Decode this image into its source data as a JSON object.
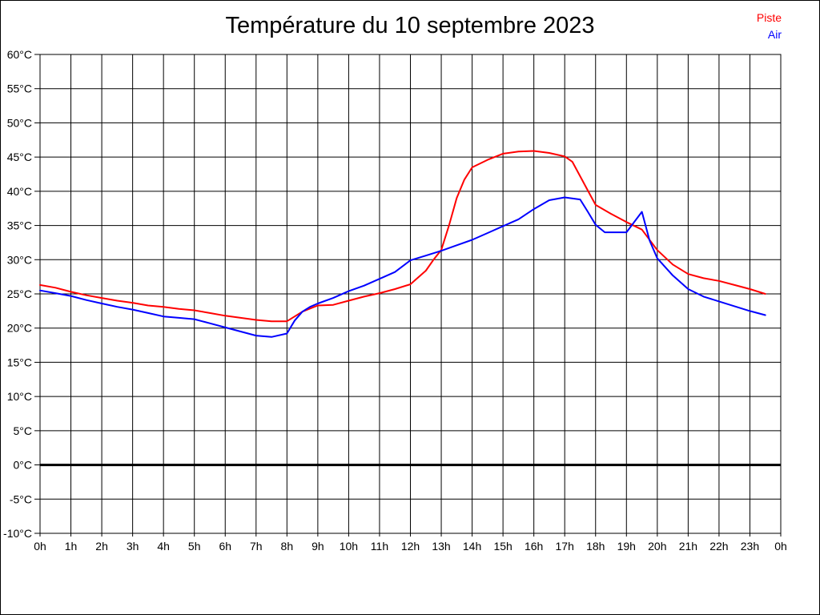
{
  "page": {
    "background": "#ffffff",
    "border_color": "#000000",
    "grid_color": "#000000",
    "text_color": "#000000"
  },
  "chart_data": {
    "type": "line",
    "title": "Température du 10 septembre 2023",
    "xlabel": "",
    "ylabel": "",
    "xlim": [
      0,
      24
    ],
    "ylim": [
      -10,
      60
    ],
    "grid": true,
    "zero_line_value": 0,
    "legend": {
      "position": "top-right",
      "entries": [
        {
          "label": "Piste",
          "color": "#ff0000"
        },
        {
          "label": "Air",
          "color": "#0000ff"
        }
      ]
    },
    "x_ticks": [
      {
        "value": 0,
        "label": "0h"
      },
      {
        "value": 1,
        "label": "1h"
      },
      {
        "value": 2,
        "label": "2h"
      },
      {
        "value": 3,
        "label": "3h"
      },
      {
        "value": 4,
        "label": "4h"
      },
      {
        "value": 5,
        "label": "5h"
      },
      {
        "value": 6,
        "label": "6h"
      },
      {
        "value": 7,
        "label": "7h"
      },
      {
        "value": 8,
        "label": "8h"
      },
      {
        "value": 9,
        "label": "9h"
      },
      {
        "value": 10,
        "label": "10h"
      },
      {
        "value": 11,
        "label": "11h"
      },
      {
        "value": 12,
        "label": "12h"
      },
      {
        "value": 13,
        "label": "13h"
      },
      {
        "value": 14,
        "label": "14h"
      },
      {
        "value": 15,
        "label": "15h"
      },
      {
        "value": 16,
        "label": "16h"
      },
      {
        "value": 17,
        "label": "17h"
      },
      {
        "value": 18,
        "label": "18h"
      },
      {
        "value": 19,
        "label": "19h"
      },
      {
        "value": 20,
        "label": "20h"
      },
      {
        "value": 21,
        "label": "21h"
      },
      {
        "value": 22,
        "label": "22h"
      },
      {
        "value": 23,
        "label": "23h"
      },
      {
        "value": 24,
        "label": "0h"
      }
    ],
    "y_ticks": [
      {
        "value": 60,
        "label": "60°C"
      },
      {
        "value": 55,
        "label": "55°C"
      },
      {
        "value": 50,
        "label": "50°C"
      },
      {
        "value": 45,
        "label": "45°C"
      },
      {
        "value": 40,
        "label": "40°C"
      },
      {
        "value": 35,
        "label": "35°C"
      },
      {
        "value": 30,
        "label": "30°C"
      },
      {
        "value": 25,
        "label": "25°C"
      },
      {
        "value": 20,
        "label": "20°C"
      },
      {
        "value": 15,
        "label": "15°C"
      },
      {
        "value": 10,
        "label": "10°C"
      },
      {
        "value": 5,
        "label": "5°C"
      },
      {
        "value": 0,
        "label": "0°C"
      },
      {
        "value": -5,
        "label": "-5°C"
      },
      {
        "value": -10,
        "label": "-10°C"
      }
    ],
    "series": [
      {
        "name": "Piste",
        "color": "#ff0000",
        "points": [
          [
            0,
            26.3
          ],
          [
            0.5,
            25.9
          ],
          [
            1,
            25.3
          ],
          [
            1.5,
            24.8
          ],
          [
            2,
            24.4
          ],
          [
            2.5,
            24.0
          ],
          [
            3,
            23.7
          ],
          [
            3.5,
            23.3
          ],
          [
            4,
            23.1
          ],
          [
            4.5,
            22.8
          ],
          [
            5,
            22.6
          ],
          [
            5.5,
            22.2
          ],
          [
            6,
            21.8
          ],
          [
            6.5,
            21.5
          ],
          [
            7,
            21.2
          ],
          [
            7.5,
            21.0
          ],
          [
            8,
            21.0
          ],
          [
            8.5,
            22.4
          ],
          [
            9,
            23.3
          ],
          [
            9.5,
            23.4
          ],
          [
            10,
            24.0
          ],
          [
            10.5,
            24.6
          ],
          [
            11,
            25.1
          ],
          [
            11.5,
            25.7
          ],
          [
            12,
            26.4
          ],
          [
            12.5,
            28.4
          ],
          [
            12.75,
            30.0
          ],
          [
            13,
            31.4
          ],
          [
            13.25,
            35.0
          ],
          [
            13.5,
            39.0
          ],
          [
            13.75,
            41.7
          ],
          [
            14,
            43.5
          ],
          [
            14.5,
            44.6
          ],
          [
            15,
            45.5
          ],
          [
            15.5,
            45.8
          ],
          [
            16,
            45.9
          ],
          [
            16.5,
            45.6
          ],
          [
            17,
            45.1
          ],
          [
            17.25,
            44.3
          ],
          [
            17.5,
            42.2
          ],
          [
            17.75,
            40.1
          ],
          [
            18,
            38.0
          ],
          [
            18.5,
            36.7
          ],
          [
            19,
            35.5
          ],
          [
            19.5,
            34.4
          ],
          [
            20,
            31.4
          ],
          [
            20.5,
            29.3
          ],
          [
            21,
            27.9
          ],
          [
            21.5,
            27.3
          ],
          [
            22,
            26.9
          ],
          [
            22.5,
            26.3
          ],
          [
            23,
            25.7
          ],
          [
            23.5,
            25.0
          ]
        ]
      },
      {
        "name": "Air",
        "color": "#0000ff",
        "points": [
          [
            0,
            25.5
          ],
          [
            0.5,
            25.1
          ],
          [
            1,
            24.7
          ],
          [
            1.5,
            24.1
          ],
          [
            2,
            23.6
          ],
          [
            2.5,
            23.1
          ],
          [
            3,
            22.7
          ],
          [
            3.5,
            22.2
          ],
          [
            4,
            21.7
          ],
          [
            4.5,
            21.5
          ],
          [
            5,
            21.3
          ],
          [
            5.5,
            20.7
          ],
          [
            6,
            20.1
          ],
          [
            6.5,
            19.5
          ],
          [
            7,
            18.9
          ],
          [
            7.5,
            18.7
          ],
          [
            8,
            19.2
          ],
          [
            8.25,
            21.1
          ],
          [
            8.5,
            22.4
          ],
          [
            8.75,
            23.1
          ],
          [
            9,
            23.6
          ],
          [
            9.5,
            24.4
          ],
          [
            10,
            25.4
          ],
          [
            10.5,
            26.2
          ],
          [
            11,
            27.2
          ],
          [
            11.5,
            28.2
          ],
          [
            12,
            29.9
          ],
          [
            12.5,
            30.6
          ],
          [
            13,
            31.3
          ],
          [
            13.5,
            32.1
          ],
          [
            14,
            32.9
          ],
          [
            14.5,
            33.9
          ],
          [
            15,
            34.9
          ],
          [
            15.5,
            35.9
          ],
          [
            16,
            37.4
          ],
          [
            16.5,
            38.7
          ],
          [
            17,
            39.1
          ],
          [
            17.5,
            38.8
          ],
          [
            17.75,
            37.0
          ],
          [
            18,
            35.1
          ],
          [
            18.3,
            34.0
          ],
          [
            19,
            34.0
          ],
          [
            19.5,
            37.0
          ],
          [
            19.75,
            32.8
          ],
          [
            20,
            30.2
          ],
          [
            20.5,
            27.7
          ],
          [
            21,
            25.7
          ],
          [
            21.5,
            24.6
          ],
          [
            22,
            23.9
          ],
          [
            22.5,
            23.2
          ],
          [
            23,
            22.5
          ],
          [
            23.5,
            21.9
          ]
        ]
      }
    ]
  }
}
